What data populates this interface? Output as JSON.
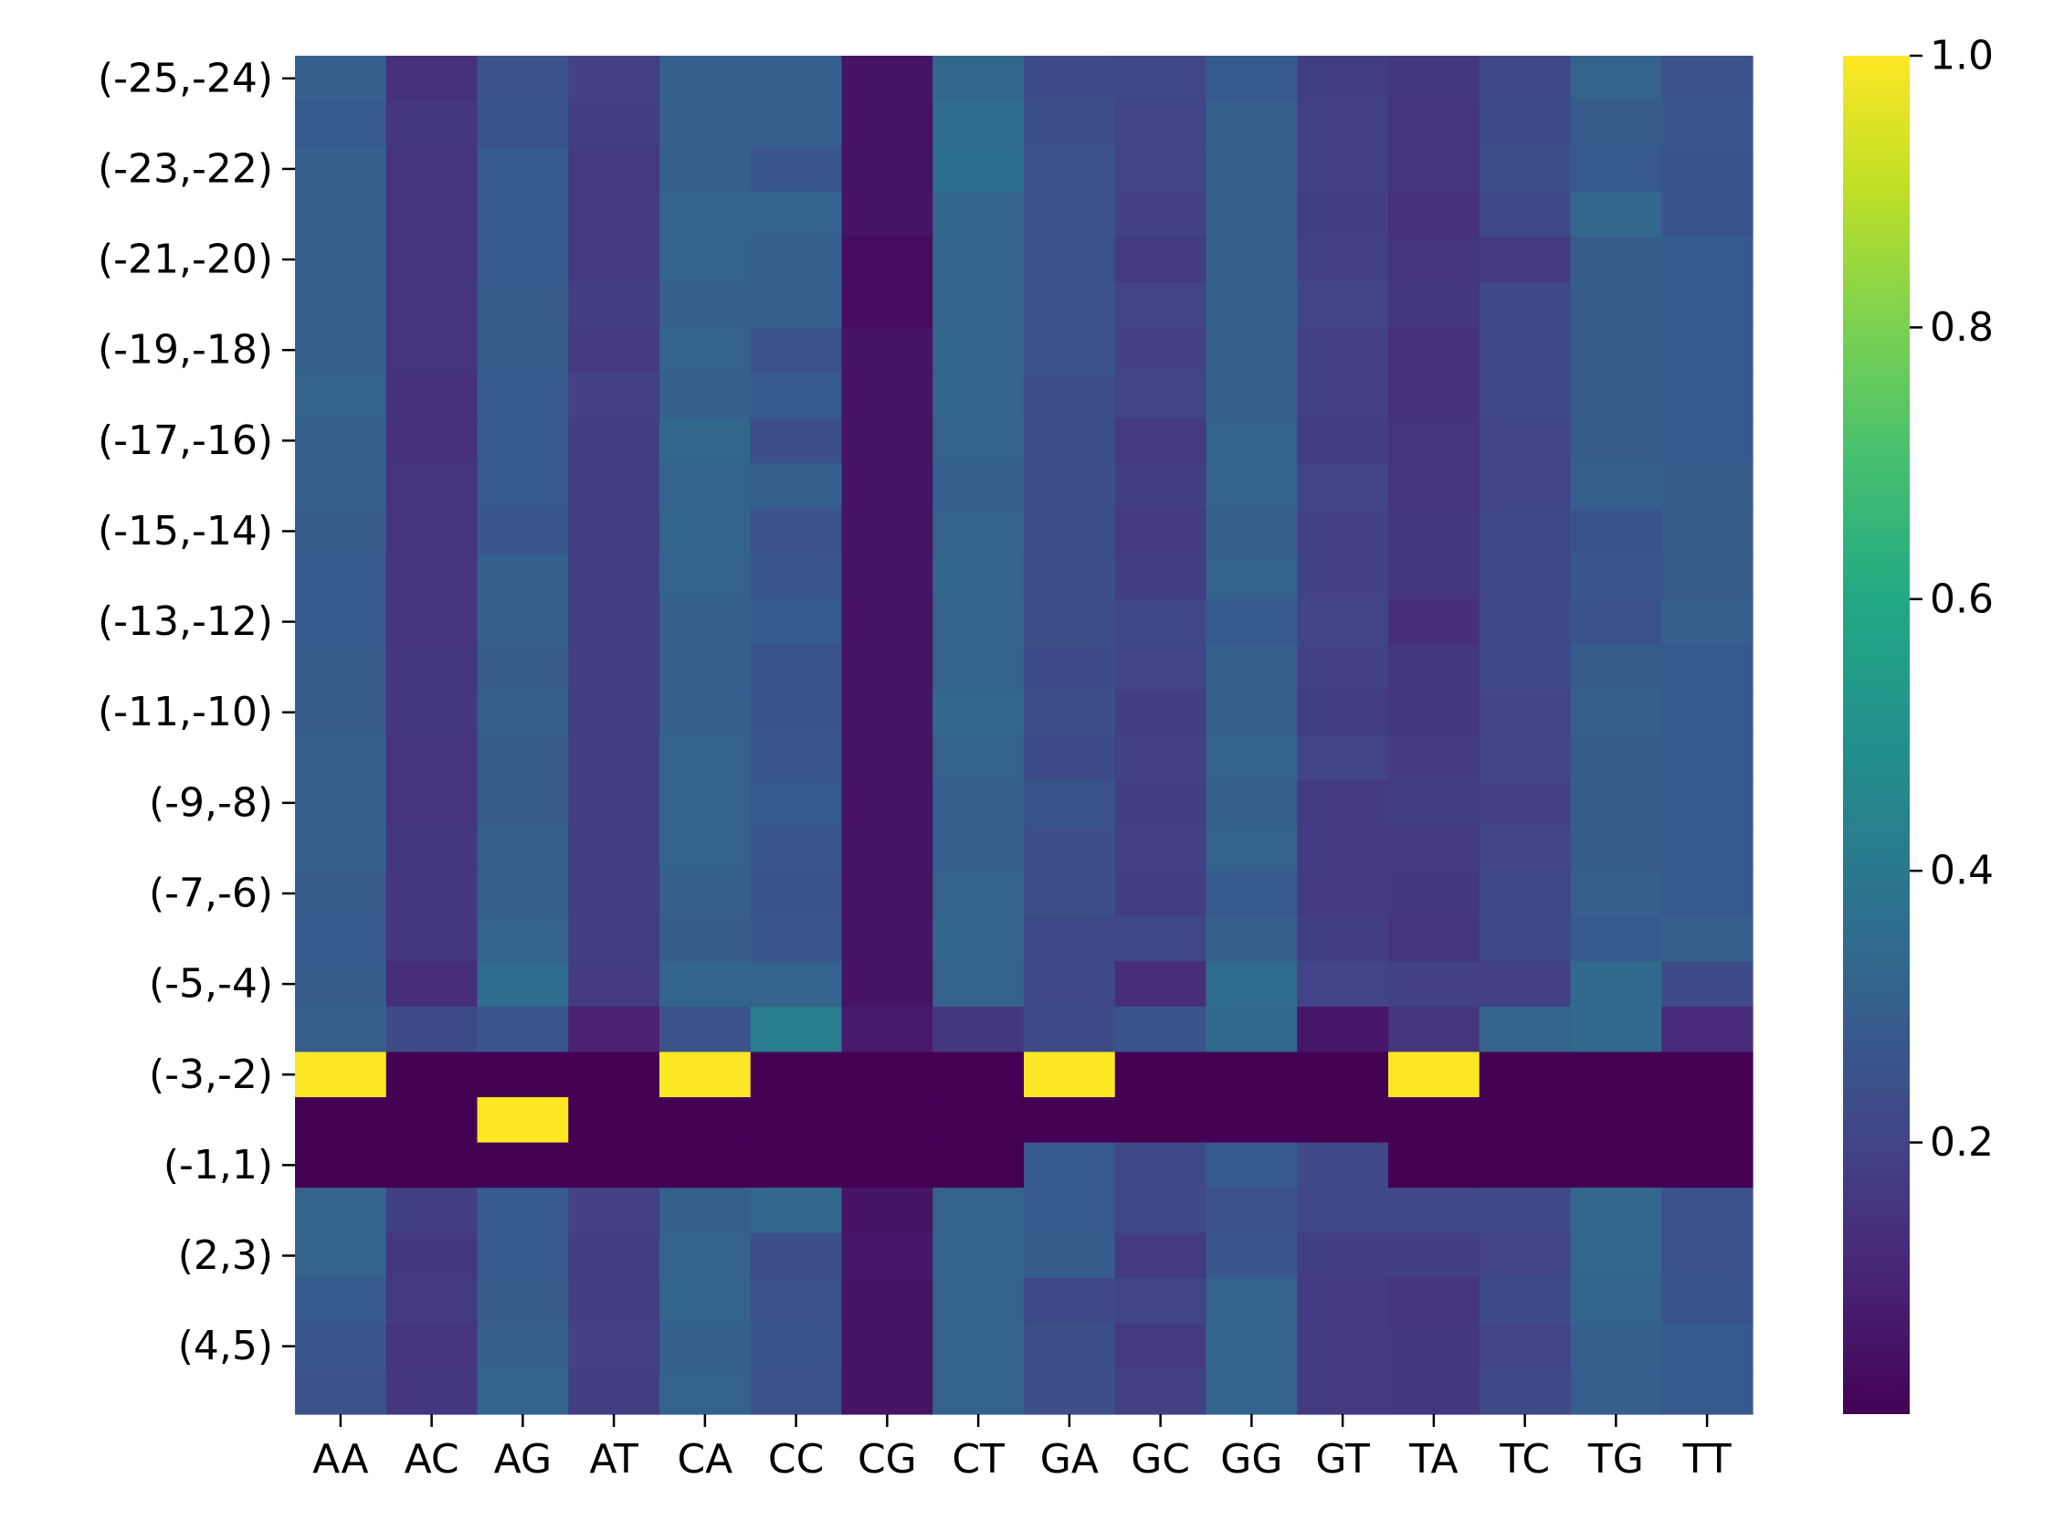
{
  "chart_data": {
    "type": "heatmap",
    "title": "",
    "xlabel": "",
    "ylabel": "",
    "x_categories": [
      "AA",
      "AC",
      "AG",
      "AT",
      "CA",
      "CC",
      "CG",
      "CT",
      "GA",
      "GC",
      "GG",
      "GT",
      "TA",
      "TC",
      "TG",
      "TT"
    ],
    "y_tick_labels": [
      "(-25,-24)",
      "(-23,-22)",
      "(-21,-20)",
      "(-19,-18)",
      "(-17,-16)",
      "(-15,-14)",
      "(-13,-12)",
      "(-11,-10)",
      "(-9,-8)",
      "(-7,-6)",
      "(-5,-4)",
      "(-3,-2)",
      "(-1,1)",
      "(2,3)",
      "(4,5)"
    ],
    "row_count": 30,
    "colormap": "viridis",
    "colorbar": {
      "min": 0.0,
      "max": 1.0,
      "ticks": [
        0.2,
        0.4,
        0.6,
        0.8,
        1.0
      ],
      "tick_labels": [
        "0.2",
        "0.4",
        "0.6",
        "0.8",
        "1.0"
      ]
    },
    "values": [
      [
        0.3,
        0.14,
        0.25,
        0.19,
        0.3,
        0.3,
        0.05,
        0.33,
        0.23,
        0.21,
        0.28,
        0.18,
        0.16,
        0.22,
        0.31,
        0.25
      ],
      [
        0.28,
        0.16,
        0.26,
        0.18,
        0.3,
        0.3,
        0.05,
        0.35,
        0.24,
        0.2,
        0.3,
        0.19,
        0.15,
        0.23,
        0.29,
        0.27
      ],
      [
        0.3,
        0.15,
        0.28,
        0.17,
        0.3,
        0.27,
        0.05,
        0.36,
        0.25,
        0.2,
        0.3,
        0.19,
        0.15,
        0.24,
        0.28,
        0.26
      ],
      [
        0.3,
        0.15,
        0.28,
        0.17,
        0.31,
        0.31,
        0.05,
        0.32,
        0.25,
        0.19,
        0.3,
        0.18,
        0.14,
        0.22,
        0.33,
        0.26
      ],
      [
        0.3,
        0.15,
        0.28,
        0.17,
        0.31,
        0.3,
        0.03,
        0.32,
        0.25,
        0.17,
        0.3,
        0.19,
        0.15,
        0.17,
        0.29,
        0.28
      ],
      [
        0.3,
        0.15,
        0.29,
        0.18,
        0.3,
        0.3,
        0.03,
        0.32,
        0.25,
        0.2,
        0.3,
        0.2,
        0.16,
        0.21,
        0.29,
        0.28
      ],
      [
        0.3,
        0.15,
        0.29,
        0.17,
        0.31,
        0.25,
        0.05,
        0.32,
        0.25,
        0.19,
        0.3,
        0.19,
        0.14,
        0.21,
        0.29,
        0.28
      ],
      [
        0.31,
        0.14,
        0.28,
        0.19,
        0.3,
        0.28,
        0.05,
        0.32,
        0.24,
        0.2,
        0.3,
        0.19,
        0.14,
        0.21,
        0.29,
        0.28
      ],
      [
        0.3,
        0.14,
        0.28,
        0.18,
        0.33,
        0.24,
        0.05,
        0.31,
        0.24,
        0.17,
        0.31,
        0.18,
        0.15,
        0.2,
        0.29,
        0.28
      ],
      [
        0.3,
        0.15,
        0.28,
        0.18,
        0.31,
        0.3,
        0.05,
        0.3,
        0.24,
        0.18,
        0.31,
        0.2,
        0.15,
        0.2,
        0.3,
        0.29
      ],
      [
        0.29,
        0.15,
        0.27,
        0.18,
        0.32,
        0.25,
        0.05,
        0.31,
        0.24,
        0.17,
        0.3,
        0.19,
        0.16,
        0.21,
        0.26,
        0.29
      ],
      [
        0.28,
        0.15,
        0.3,
        0.18,
        0.31,
        0.27,
        0.05,
        0.32,
        0.24,
        0.18,
        0.31,
        0.19,
        0.16,
        0.21,
        0.27,
        0.29
      ],
      [
        0.28,
        0.15,
        0.3,
        0.18,
        0.3,
        0.28,
        0.05,
        0.31,
        0.24,
        0.21,
        0.28,
        0.2,
        0.13,
        0.22,
        0.25,
        0.3
      ],
      [
        0.29,
        0.16,
        0.29,
        0.18,
        0.3,
        0.26,
        0.05,
        0.31,
        0.23,
        0.2,
        0.3,
        0.19,
        0.16,
        0.21,
        0.29,
        0.28
      ],
      [
        0.29,
        0.16,
        0.3,
        0.18,
        0.3,
        0.26,
        0.05,
        0.33,
        0.24,
        0.18,
        0.3,
        0.18,
        0.16,
        0.2,
        0.3,
        0.28
      ],
      [
        0.3,
        0.15,
        0.29,
        0.18,
        0.31,
        0.27,
        0.05,
        0.31,
        0.23,
        0.19,
        0.31,
        0.2,
        0.17,
        0.2,
        0.29,
        0.28
      ],
      [
        0.3,
        0.15,
        0.29,
        0.18,
        0.31,
        0.28,
        0.05,
        0.3,
        0.26,
        0.18,
        0.3,
        0.17,
        0.18,
        0.19,
        0.29,
        0.28
      ],
      [
        0.3,
        0.16,
        0.3,
        0.18,
        0.31,
        0.27,
        0.05,
        0.3,
        0.24,
        0.19,
        0.31,
        0.17,
        0.17,
        0.2,
        0.29,
        0.28
      ],
      [
        0.29,
        0.16,
        0.3,
        0.18,
        0.3,
        0.26,
        0.05,
        0.31,
        0.24,
        0.18,
        0.28,
        0.17,
        0.16,
        0.21,
        0.3,
        0.28
      ],
      [
        0.28,
        0.16,
        0.31,
        0.18,
        0.29,
        0.27,
        0.05,
        0.32,
        0.22,
        0.21,
        0.3,
        0.18,
        0.15,
        0.22,
        0.28,
        0.3
      ],
      [
        0.29,
        0.13,
        0.35,
        0.17,
        0.32,
        0.31,
        0.05,
        0.31,
        0.22,
        0.13,
        0.35,
        0.2,
        0.19,
        0.19,
        0.34,
        0.23
      ],
      [
        0.3,
        0.23,
        0.27,
        0.09,
        0.25,
        0.42,
        0.07,
        0.16,
        0.23,
        0.26,
        0.34,
        0.06,
        0.15,
        0.31,
        0.34,
        0.12
      ],
      [
        1.0,
        0.0,
        0.0,
        0.0,
        1.0,
        0.0,
        0.0,
        0.0,
        1.0,
        0.0,
        0.0,
        0.0,
        1.0,
        0.0,
        0.0,
        0.0
      ],
      [
        0.0,
        0.0,
        1.0,
        0.0,
        0.0,
        0.0,
        0.0,
        0.0,
        0.0,
        0.0,
        0.0,
        0.0,
        0.0,
        0.0,
        0.0,
        0.0
      ],
      [
        0.0,
        0.0,
        0.0,
        0.0,
        0.0,
        0.0,
        0.0,
        0.0,
        0.28,
        0.22,
        0.28,
        0.22,
        0.0,
        0.0,
        0.0,
        0.0
      ],
      [
        0.32,
        0.18,
        0.28,
        0.19,
        0.3,
        0.33,
        0.05,
        0.31,
        0.28,
        0.22,
        0.25,
        0.21,
        0.21,
        0.22,
        0.33,
        0.25
      ],
      [
        0.31,
        0.16,
        0.28,
        0.18,
        0.31,
        0.24,
        0.06,
        0.31,
        0.29,
        0.17,
        0.27,
        0.18,
        0.18,
        0.2,
        0.33,
        0.25
      ],
      [
        0.28,
        0.17,
        0.29,
        0.18,
        0.32,
        0.25,
        0.05,
        0.31,
        0.22,
        0.2,
        0.31,
        0.17,
        0.15,
        0.23,
        0.32,
        0.26
      ],
      [
        0.27,
        0.15,
        0.3,
        0.19,
        0.3,
        0.26,
        0.05,
        0.31,
        0.24,
        0.17,
        0.32,
        0.17,
        0.16,
        0.2,
        0.3,
        0.28
      ],
      [
        0.25,
        0.16,
        0.32,
        0.18,
        0.31,
        0.25,
        0.05,
        0.31,
        0.24,
        0.19,
        0.32,
        0.17,
        0.16,
        0.22,
        0.3,
        0.28
      ]
    ]
  }
}
